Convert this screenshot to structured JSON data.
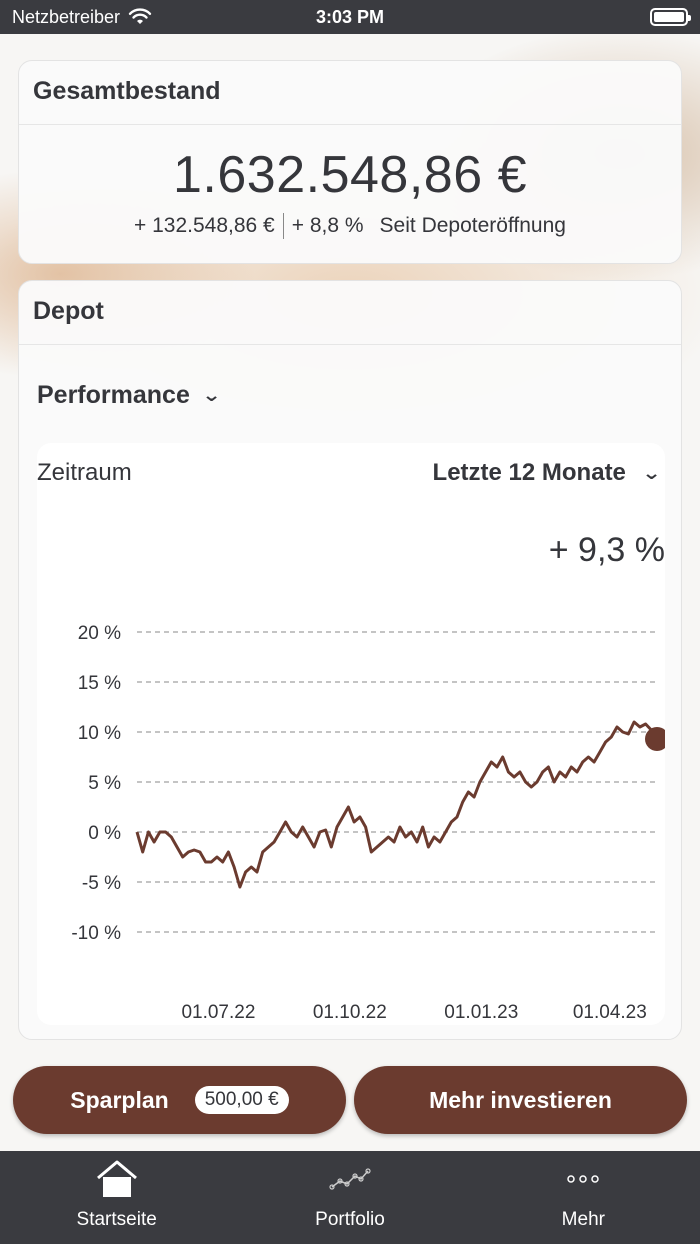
{
  "status_bar": {
    "carrier": "Netzbetreiber",
    "time": "3:03 PM"
  },
  "total": {
    "title": "Gesamtbestand",
    "amount": "1.632.548,86 €",
    "change_abs": "+ 132.548,86 €",
    "change_pct": "+ 8,8 %",
    "since": "Seit Depoteröffnung"
  },
  "depot": {
    "title": "Depot",
    "view_select": "Performance",
    "period_label": "Zeitraum",
    "period_value": "Letzte 12 Monate",
    "performance": "+ 9,3 %"
  },
  "chart_data": {
    "type": "line",
    "ylim": [
      -10,
      20
    ],
    "y_ticks": [
      20,
      15,
      10,
      5,
      0,
      -5,
      -10
    ],
    "y_tick_labels": [
      "20 %",
      "15 %",
      "10 %",
      "5 %",
      "0 %",
      "-5 %",
      "-10 %"
    ],
    "x_tick_labels": [
      "01.07.22",
      "01.10.22",
      "01.01.23",
      "01.04.23"
    ],
    "x_tick_dates": [
      "2022-07-01",
      "2022-10-01",
      "2023-01-01",
      "2023-04-01"
    ],
    "grid": true,
    "line_color": "#6b3b2f",
    "series": [
      {
        "x": [
          "2022-05-05",
          "2022-05-09",
          "2022-05-13",
          "2022-05-17",
          "2022-05-21",
          "2022-05-25",
          "2022-05-29",
          "2022-06-02",
          "2022-06-06",
          "2022-06-10",
          "2022-06-14",
          "2022-06-18",
          "2022-06-22",
          "2022-06-26",
          "2022-06-30",
          "2022-07-04",
          "2022-07-08",
          "2022-07-12",
          "2022-07-16",
          "2022-07-20",
          "2022-07-24",
          "2022-07-28",
          "2022-08-01",
          "2022-08-05",
          "2022-08-09",
          "2022-08-13",
          "2022-08-17",
          "2022-08-21",
          "2022-08-25",
          "2022-08-29",
          "2022-09-02",
          "2022-09-06",
          "2022-09-10",
          "2022-09-14",
          "2022-09-18",
          "2022-09-22",
          "2022-09-26",
          "2022-09-30",
          "2022-10-04",
          "2022-10-08",
          "2022-10-12",
          "2022-10-16",
          "2022-10-20",
          "2022-10-24",
          "2022-10-28",
          "2022-11-01",
          "2022-11-05",
          "2022-11-09",
          "2022-11-13",
          "2022-11-17",
          "2022-11-21",
          "2022-11-25",
          "2022-11-29",
          "2022-12-03",
          "2022-12-07",
          "2022-12-11",
          "2022-12-15",
          "2022-12-19",
          "2022-12-23",
          "2022-12-27",
          "2022-12-31",
          "2023-01-04",
          "2023-01-08",
          "2023-01-12",
          "2023-01-16",
          "2023-01-20",
          "2023-01-24",
          "2023-01-28",
          "2023-02-01",
          "2023-02-05",
          "2023-02-09",
          "2023-02-13",
          "2023-02-17",
          "2023-02-21",
          "2023-02-25",
          "2023-03-01",
          "2023-03-05",
          "2023-03-09",
          "2023-03-13",
          "2023-03-17",
          "2023-03-21",
          "2023-03-25",
          "2023-03-29",
          "2023-04-02",
          "2023-04-06",
          "2023-04-10",
          "2023-04-14",
          "2023-04-18",
          "2023-04-22",
          "2023-04-26",
          "2023-04-30",
          "2023-05-04"
        ],
        "y": [
          0,
          -2,
          0,
          -1,
          0,
          0,
          -0.5,
          -1.5,
          -2.5,
          -2,
          -1.8,
          -2,
          -3,
          -3,
          -2.5,
          -3,
          -2,
          -3.5,
          -5.5,
          -4,
          -3.5,
          -4,
          -2,
          -1.5,
          -1,
          0,
          1,
          0,
          -0.5,
          0.5,
          -0.5,
          -1.5,
          0,
          0.2,
          -1.5,
          0.5,
          1.5,
          2.5,
          1,
          1.5,
          0.5,
          -2,
          -1.5,
          -1,
          -0.5,
          -1,
          0.5,
          -0.5,
          0,
          -1,
          0.5,
          -1.5,
          -0.5,
          -1,
          0,
          1,
          1.5,
          3,
          4,
          3.5,
          5,
          6,
          7,
          6.5,
          7.5,
          6,
          5.5,
          6,
          5,
          4.5,
          5,
          6,
          6.5,
          5,
          6,
          5.5,
          6.5,
          6,
          7,
          7.5,
          7,
          8,
          9,
          9.5,
          10.5,
          10,
          9.8,
          11,
          10.5,
          10.8,
          10.2,
          9.3
        ]
      }
    ]
  },
  "actions": {
    "sparplan_label": "Sparplan",
    "sparplan_amount": "500,00 €",
    "invest_label": "Mehr investieren"
  },
  "tabs": [
    {
      "label": "Startseite",
      "icon": "home-icon"
    },
    {
      "label": "Portfolio",
      "icon": "portfolio-chart-icon"
    },
    {
      "label": "Mehr",
      "icon": "more-dots-icon"
    }
  ]
}
